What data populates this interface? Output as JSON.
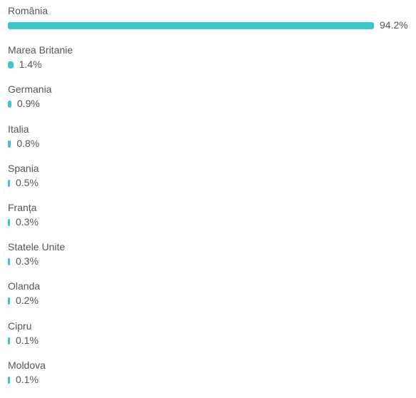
{
  "chart_data": {
    "type": "bar",
    "orientation": "horizontal",
    "title": "",
    "xlabel": "",
    "ylabel": "",
    "categories": [
      "România",
      "Marea Britanie",
      "Germania",
      "Italia",
      "Spania",
      "Franța",
      "Statele Unite",
      "Olanda",
      "Cipru",
      "Moldova"
    ],
    "values": [
      94.2,
      1.4,
      0.9,
      0.8,
      0.5,
      0.3,
      0.3,
      0.2,
      0.1,
      0.1
    ],
    "value_labels": [
      "94.2%",
      "1.4%",
      "0.9%",
      "0.8%",
      "0.5%",
      "0.3%",
      "0.3%",
      "0.2%",
      "0.1%",
      "0.1%"
    ],
    "xlim": [
      0,
      94.2
    ],
    "grid": false,
    "legend": "none",
    "bar_color": "#3cc8c8"
  }
}
